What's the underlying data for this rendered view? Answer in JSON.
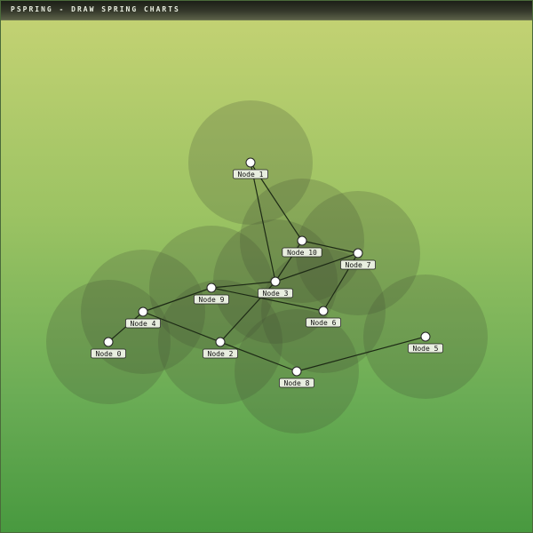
{
  "window": {
    "title": "PSPRING - DRAW SPRING CHARTS"
  },
  "colors": {
    "edge": "#1d2a15",
    "halo": "#3f4a33",
    "node_fill": "#ffffff",
    "node_stroke": "#222222",
    "label_fill": "#e8eedf",
    "label_stroke": "#222222"
  },
  "graph": {
    "nodes": [
      {
        "id": "n0",
        "label": "Node 0"
      },
      {
        "id": "n1",
        "label": "Node 1"
      },
      {
        "id": "n2",
        "label": "Node 2"
      },
      {
        "id": "n3",
        "label": "Node 3"
      },
      {
        "id": "n4",
        "label": "Node 4"
      },
      {
        "id": "n5",
        "label": "Node 5"
      },
      {
        "id": "n6",
        "label": "Node 6"
      },
      {
        "id": "n7",
        "label": "Node 7"
      },
      {
        "id": "n8",
        "label": "Node 8"
      },
      {
        "id": "n9",
        "label": "Node 9"
      },
      {
        "id": "n10",
        "label": "Node 10"
      }
    ],
    "edges": [
      [
        "n0",
        "n4"
      ],
      [
        "n4",
        "n9"
      ],
      [
        "n4",
        "n2"
      ],
      [
        "n9",
        "n3"
      ],
      [
        "n9",
        "n6"
      ],
      [
        "n1",
        "n3"
      ],
      [
        "n1",
        "n10"
      ],
      [
        "n10",
        "n3"
      ],
      [
        "n10",
        "n7"
      ],
      [
        "n3",
        "n7"
      ],
      [
        "n3",
        "n2"
      ],
      [
        "n7",
        "n6"
      ],
      [
        "n2",
        "n8"
      ],
      [
        "n8",
        "n5"
      ]
    ]
  }
}
